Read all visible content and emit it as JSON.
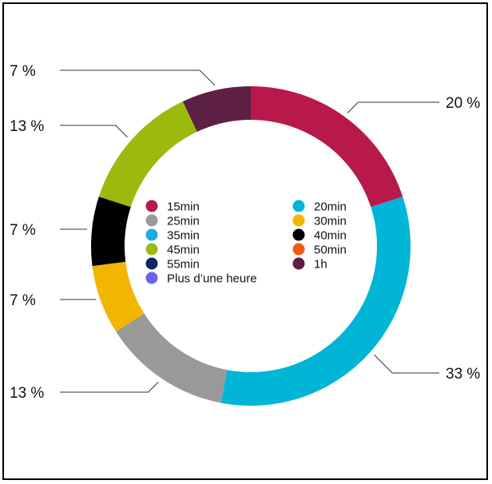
{
  "chart_data": {
    "type": "pie",
    "style": "donut",
    "legend_placement": "center",
    "slices": [
      {
        "label": "15min",
        "value": 20,
        "percent_label": "20 %",
        "color": "#B8184A"
      },
      {
        "label": "20min",
        "value": 33,
        "percent_label": "33 %",
        "color": "#00B5D6"
      },
      {
        "label": "25min",
        "value": 13,
        "percent_label": "13 %",
        "color": "#999999"
      },
      {
        "label": "30min",
        "value": 7,
        "percent_label": "7 %",
        "color": "#F2B500"
      },
      {
        "label": "40min",
        "value": 7,
        "percent_label": "7 %",
        "color": "#000000"
      },
      {
        "label": "45min",
        "value": 13,
        "percent_label": "13 %",
        "color": "#9CBA0E"
      },
      {
        "label": "1h",
        "value": 7,
        "percent_label": "7 %",
        "color": "#5E1F44"
      }
    ],
    "legend": [
      {
        "label": "15min",
        "color": "#B8184A"
      },
      {
        "label": "20min",
        "color": "#00B5D6"
      },
      {
        "label": "25min",
        "color": "#999999"
      },
      {
        "label": "30min",
        "color": "#F2B500"
      },
      {
        "label": "35min",
        "color": "#1FA7E0"
      },
      {
        "label": "40min",
        "color": "#000000"
      },
      {
        "label": "45min",
        "color": "#9CBA0E"
      },
      {
        "label": "50min",
        "color": "#F05A12"
      },
      {
        "label": "55min",
        "color": "#0E2468"
      },
      {
        "label": "1h",
        "color": "#5E1F44"
      },
      {
        "label": "Plus d’une heure",
        "color": "#6A63E6"
      }
    ]
  }
}
